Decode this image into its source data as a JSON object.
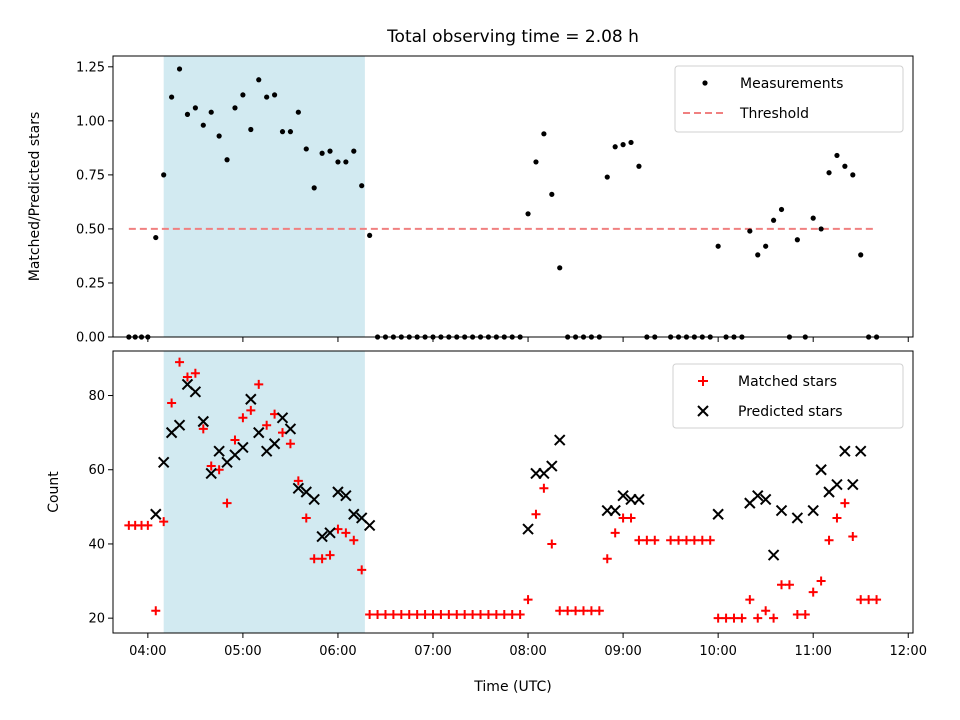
{
  "figure": {
    "title": "Total observing time = 2.08 h",
    "xlabel": "Time (UTC)"
  },
  "colors": {
    "highlight": "#add8e6",
    "measurement": "#000000",
    "threshold": "#f08080",
    "matched": "#ff0000",
    "predicted": "#000000"
  },
  "chart_data": [
    {
      "type": "scatter",
      "ylabel": "Matched/Predicted stars",
      "ylim": [
        0,
        1.3
      ],
      "yticks": [
        0.0,
        0.25,
        0.5,
        0.75,
        1.0,
        1.25
      ],
      "ytick_labels": [
        "0.00",
        "0.25",
        "0.50",
        "0.75",
        "1.00",
        "1.25"
      ],
      "xlim": [
        "03:38",
        "12:03"
      ],
      "xticks": [
        "04:00",
        "05:00",
        "06:00",
        "07:00",
        "08:00",
        "09:00",
        "10:00",
        "11:00",
        "12:00"
      ],
      "show_xtick_labels": false,
      "highlight_span": [
        "04:10",
        "06:17"
      ],
      "legend": {
        "position": "top-right"
      },
      "threshold": {
        "name": "Threshold",
        "y": 0.5,
        "x_range": [
          "03:48",
          "11:38"
        ]
      },
      "series": [
        {
          "name": "Measurements",
          "marker": "dot",
          "points": [
            [
              "03:48",
              0
            ],
            [
              "03:52",
              0
            ],
            [
              "03:56",
              0
            ],
            [
              "04:00",
              0
            ],
            [
              "04:05",
              0.46
            ],
            [
              "04:10",
              0.75
            ],
            [
              "04:15",
              1.11
            ],
            [
              "04:20",
              1.24
            ],
            [
              "04:25",
              1.03
            ],
            [
              "04:30",
              1.06
            ],
            [
              "04:35",
              0.98
            ],
            [
              "04:40",
              1.04
            ],
            [
              "04:45",
              0.93
            ],
            [
              "04:50",
              0.82
            ],
            [
              "04:55",
              1.06
            ],
            [
              "05:00",
              1.12
            ],
            [
              "05:05",
              0.96
            ],
            [
              "05:10",
              1.19
            ],
            [
              "05:15",
              1.11
            ],
            [
              "05:20",
              1.12
            ],
            [
              "05:25",
              0.95
            ],
            [
              "05:30",
              0.95
            ],
            [
              "05:35",
              1.04
            ],
            [
              "05:40",
              0.87
            ],
            [
              "05:45",
              0.69
            ],
            [
              "05:50",
              0.85
            ],
            [
              "05:55",
              0.86
            ],
            [
              "06:00",
              0.81
            ],
            [
              "06:05",
              0.81
            ],
            [
              "06:10",
              0.86
            ],
            [
              "06:15",
              0.7
            ],
            [
              "06:20",
              0.47
            ],
            [
              "06:25",
              0
            ],
            [
              "06:30",
              0
            ],
            [
              "06:35",
              0
            ],
            [
              "06:40",
              0
            ],
            [
              "06:45",
              0
            ],
            [
              "06:50",
              0
            ],
            [
              "06:55",
              0
            ],
            [
              "07:00",
              0
            ],
            [
              "07:05",
              0
            ],
            [
              "07:10",
              0
            ],
            [
              "07:15",
              0
            ],
            [
              "07:20",
              0
            ],
            [
              "07:25",
              0
            ],
            [
              "07:30",
              0
            ],
            [
              "07:35",
              0
            ],
            [
              "07:40",
              0
            ],
            [
              "07:45",
              0
            ],
            [
              "07:50",
              0
            ],
            [
              "07:55",
              0
            ],
            [
              "08:00",
              0.57
            ],
            [
              "08:05",
              0.81
            ],
            [
              "08:10",
              0.94
            ],
            [
              "08:15",
              0.66
            ],
            [
              "08:20",
              0.32
            ],
            [
              "08:25",
              0
            ],
            [
              "08:30",
              0
            ],
            [
              "08:35",
              0
            ],
            [
              "08:40",
              0
            ],
            [
              "08:45",
              0
            ],
            [
              "08:50",
              0.74
            ],
            [
              "08:55",
              0.88
            ],
            [
              "09:00",
              0.89
            ],
            [
              "09:05",
              0.9
            ],
            [
              "09:10",
              0.79
            ],
            [
              "09:15",
              0
            ],
            [
              "09:20",
              0
            ],
            [
              "09:30",
              0
            ],
            [
              "09:35",
              0
            ],
            [
              "09:40",
              0
            ],
            [
              "09:45",
              0
            ],
            [
              "09:50",
              0
            ],
            [
              "09:55",
              0
            ],
            [
              "10:00",
              0.42
            ],
            [
              "10:05",
              0
            ],
            [
              "10:10",
              0
            ],
            [
              "10:15",
              0
            ],
            [
              "10:20",
              0.49
            ],
            [
              "10:25",
              0.38
            ],
            [
              "10:30",
              0.42
            ],
            [
              "10:35",
              0.54
            ],
            [
              "10:40",
              0.59
            ],
            [
              "10:45",
              0
            ],
            [
              "10:50",
              0.45
            ],
            [
              "10:55",
              0
            ],
            [
              "11:00",
              0.55
            ],
            [
              "11:05",
              0.5
            ],
            [
              "11:10",
              0.76
            ],
            [
              "11:15",
              0.84
            ],
            [
              "11:20",
              0.79
            ],
            [
              "11:25",
              0.75
            ],
            [
              "11:30",
              0.38
            ],
            [
              "11:35",
              0
            ],
            [
              "11:40",
              0
            ]
          ]
        }
      ]
    },
    {
      "type": "scatter",
      "ylabel": "Count",
      "ylim": [
        16,
        92
      ],
      "yticks": [
        20,
        40,
        60,
        80
      ],
      "ytick_labels": [
        "20",
        "40",
        "60",
        "80"
      ],
      "xlim": [
        "03:38",
        "12:03"
      ],
      "xticks": [
        "04:00",
        "05:00",
        "06:00",
        "07:00",
        "08:00",
        "09:00",
        "10:00",
        "11:00",
        "12:00"
      ],
      "xtick_labels": [
        "04:00",
        "05:00",
        "06:00",
        "07:00",
        "08:00",
        "09:00",
        "10:00",
        "11:00",
        "12:00"
      ],
      "highlight_span": [
        "04:10",
        "06:17"
      ],
      "legend": {
        "position": "top-right"
      },
      "series": [
        {
          "name": "Matched stars",
          "marker": "plus",
          "points": [
            [
              "03:48",
              45
            ],
            [
              "03:52",
              45
            ],
            [
              "03:56",
              45
            ],
            [
              "04:00",
              45
            ],
            [
              "04:05",
              22
            ],
            [
              "04:10",
              46
            ],
            [
              "04:15",
              78
            ],
            [
              "04:20",
              89
            ],
            [
              "04:25",
              85
            ],
            [
              "04:30",
              86
            ],
            [
              "04:35",
              71
            ],
            [
              "04:40",
              61
            ],
            [
              "04:45",
              60
            ],
            [
              "04:50",
              51
            ],
            [
              "04:55",
              68
            ],
            [
              "05:00",
              74
            ],
            [
              "05:05",
              76
            ],
            [
              "05:10",
              83
            ],
            [
              "05:15",
              72
            ],
            [
              "05:20",
              75
            ],
            [
              "05:25",
              70
            ],
            [
              "05:30",
              67
            ],
            [
              "05:35",
              57
            ],
            [
              "05:40",
              47
            ],
            [
              "05:45",
              36
            ],
            [
              "05:50",
              36
            ],
            [
              "05:55",
              37
            ],
            [
              "06:00",
              44
            ],
            [
              "06:05",
              43
            ],
            [
              "06:10",
              41
            ],
            [
              "06:15",
              33
            ],
            [
              "06:20",
              21
            ],
            [
              "06:25",
              21
            ],
            [
              "06:30",
              21
            ],
            [
              "06:35",
              21
            ],
            [
              "06:40",
              21
            ],
            [
              "06:45",
              21
            ],
            [
              "06:50",
              21
            ],
            [
              "06:55",
              21
            ],
            [
              "07:00",
              21
            ],
            [
              "07:05",
              21
            ],
            [
              "07:10",
              21
            ],
            [
              "07:15",
              21
            ],
            [
              "07:20",
              21
            ],
            [
              "07:25",
              21
            ],
            [
              "07:30",
              21
            ],
            [
              "07:35",
              21
            ],
            [
              "07:40",
              21
            ],
            [
              "07:45",
              21
            ],
            [
              "07:50",
              21
            ],
            [
              "07:55",
              21
            ],
            [
              "08:00",
              25
            ],
            [
              "08:05",
              48
            ],
            [
              "08:10",
              55
            ],
            [
              "08:15",
              40
            ],
            [
              "08:20",
              22
            ],
            [
              "08:25",
              22
            ],
            [
              "08:30",
              22
            ],
            [
              "08:35",
              22
            ],
            [
              "08:40",
              22
            ],
            [
              "08:45",
              22
            ],
            [
              "08:50",
              36
            ],
            [
              "08:55",
              43
            ],
            [
              "09:00",
              47
            ],
            [
              "09:05",
              47
            ],
            [
              "09:10",
              41
            ],
            [
              "09:15",
              41
            ],
            [
              "09:20",
              41
            ],
            [
              "09:30",
              41
            ],
            [
              "09:35",
              41
            ],
            [
              "09:40",
              41
            ],
            [
              "09:45",
              41
            ],
            [
              "09:50",
              41
            ],
            [
              "09:55",
              41
            ],
            [
              "10:00",
              20
            ],
            [
              "10:05",
              20
            ],
            [
              "10:10",
              20
            ],
            [
              "10:15",
              20
            ],
            [
              "10:20",
              25
            ],
            [
              "10:25",
              20
            ],
            [
              "10:30",
              22
            ],
            [
              "10:35",
              20
            ],
            [
              "10:40",
              29
            ],
            [
              "10:45",
              29
            ],
            [
              "10:50",
              21
            ],
            [
              "10:55",
              21
            ],
            [
              "11:00",
              27
            ],
            [
              "11:05",
              30
            ],
            [
              "11:10",
              41
            ],
            [
              "11:15",
              47
            ],
            [
              "11:20",
              51
            ],
            [
              "11:25",
              42
            ],
            [
              "11:30",
              25
            ],
            [
              "11:35",
              25
            ],
            [
              "11:40",
              25
            ]
          ]
        },
        {
          "name": "Predicted stars",
          "marker": "x",
          "points": [
            [
              "04:05",
              48
            ],
            [
              "04:10",
              62
            ],
            [
              "04:15",
              70
            ],
            [
              "04:20",
              72
            ],
            [
              "04:25",
              83
            ],
            [
              "04:30",
              81
            ],
            [
              "04:35",
              73
            ],
            [
              "04:40",
              59
            ],
            [
              "04:45",
              65
            ],
            [
              "04:50",
              62
            ],
            [
              "04:55",
              64
            ],
            [
              "05:00",
              66
            ],
            [
              "05:05",
              79
            ],
            [
              "05:10",
              70
            ],
            [
              "05:15",
              65
            ],
            [
              "05:20",
              67
            ],
            [
              "05:25",
              74
            ],
            [
              "05:30",
              71
            ],
            [
              "05:35",
              55
            ],
            [
              "05:40",
              54
            ],
            [
              "05:45",
              52
            ],
            [
              "05:50",
              42
            ],
            [
              "05:55",
              43
            ],
            [
              "06:00",
              54
            ],
            [
              "06:05",
              53
            ],
            [
              "06:10",
              48
            ],
            [
              "06:15",
              47
            ],
            [
              "06:20",
              45
            ],
            [
              "08:00",
              44
            ],
            [
              "08:05",
              59
            ],
            [
              "08:10",
              59
            ],
            [
              "08:15",
              61
            ],
            [
              "08:20",
              68
            ],
            [
              "08:50",
              49
            ],
            [
              "08:55",
              49
            ],
            [
              "09:00",
              53
            ],
            [
              "09:05",
              52
            ],
            [
              "09:10",
              52
            ],
            [
              "10:00",
              48
            ],
            [
              "10:20",
              51
            ],
            [
              "10:25",
              53
            ],
            [
              "10:30",
              52
            ],
            [
              "10:35",
              37
            ],
            [
              "10:40",
              49
            ],
            [
              "10:50",
              47
            ],
            [
              "11:00",
              49
            ],
            [
              "11:05",
              60
            ],
            [
              "11:10",
              54
            ],
            [
              "11:15",
              56
            ],
            [
              "11:20",
              65
            ],
            [
              "11:25",
              56
            ],
            [
              "11:30",
              65
            ]
          ]
        }
      ]
    }
  ]
}
